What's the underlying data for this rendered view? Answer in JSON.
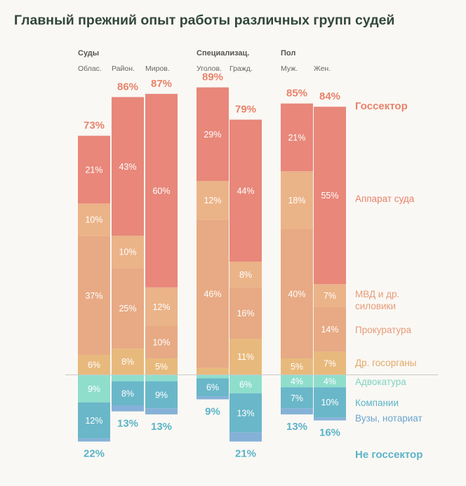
{
  "title": "Главный прежний опыт работы различных групп судей",
  "chart_data": {
    "type": "bar",
    "stacked": true,
    "diverging": true,
    "title": "Главный прежний опыт работы различных групп судей",
    "groups": [
      {
        "label": "Суды",
        "categories": [
          "Облас.",
          "Район.",
          "Миров."
        ]
      },
      {
        "label": "Специализац.",
        "categories": [
          "Уголов.",
          "Гражд."
        ]
      },
      {
        "label": "Пол",
        "categories": [
          "Муж.",
          "Жен."
        ]
      }
    ],
    "categories": [
      "Облас.",
      "Район.",
      "Миров.",
      "Уголов.",
      "Гражд.",
      "Муж.",
      "Жен."
    ],
    "public_sector": {
      "label": "Госсектор",
      "totals": [
        "73%",
        "86%",
        "87%",
        "89%",
        "79%",
        "85%",
        "84%"
      ],
      "series": [
        {
          "name": "Др. госорганы",
          "color": "#e8b97c",
          "values": [
            6,
            8,
            5,
            2,
            11,
            5,
            7
          ],
          "labels": [
            "6%",
            "8%",
            "5%",
            "",
            "11%",
            "5%",
            "7%"
          ]
        },
        {
          "name": "Прокуратура",
          "color": "#e7aa84",
          "values": [
            37,
            25,
            10,
            46,
            16,
            40,
            14
          ],
          "labels": [
            "37%",
            "25%",
            "10%",
            "46%",
            "16%",
            "40%",
            "14%"
          ]
        },
        {
          "name": "МВД и др. силовики",
          "color": "#ebb388",
          "values": [
            10,
            10,
            12,
            12,
            8,
            18,
            7
          ],
          "labels": [
            "10%",
            "10%",
            "12%",
            "12%",
            "8%",
            "18%",
            "7%"
          ]
        },
        {
          "name": "Аппарат суда",
          "color": "#e8877a",
          "values": [
            21,
            43,
            60,
            29,
            44,
            21,
            55
          ],
          "labels": [
            "21%",
            "43%",
            "60%",
            "29%",
            "44%",
            "21%",
            "55%"
          ]
        }
      ]
    },
    "private_sector": {
      "label": "Не госсектор",
      "totals": [
        "22%",
        "13%",
        "13%",
        "9%",
        "21%",
        "13%",
        "16%"
      ],
      "series": [
        {
          "name": "Адвокатура",
          "color": "#8fdecc",
          "values": [
            9,
            2,
            2,
            1,
            6,
            4,
            4
          ],
          "labels": [
            "9%",
            "",
            "",
            "",
            "6%",
            "4%",
            "4%"
          ]
        },
        {
          "name": "Компании",
          "color": "#6ab7c9",
          "values": [
            12,
            8,
            9,
            6,
            13,
            7,
            10
          ],
          "labels": [
            "12%",
            "8%",
            "9%",
            "6%",
            "13%",
            "7%",
            "10%"
          ]
        },
        {
          "name": "Вузы, нотариат",
          "color": "#85b1d8",
          "values": [
            1,
            2,
            2,
            1,
            3,
            2,
            1
          ],
          "labels": [
            "",
            "",
            "",
            "",
            "",
            "",
            ""
          ]
        }
      ]
    },
    "legend": [
      {
        "name": "Госсектор",
        "color": "#e8826a",
        "emphasis": true
      },
      {
        "name": "Аппарат суда",
        "color": "#e8826a"
      },
      {
        "name": "МВД и др.",
        "name2": "силовики",
        "color": "#e69c7a"
      },
      {
        "name": "Прокуратура",
        "color": "#e69c7a"
      },
      {
        "name": "Др. госорганы",
        "color": "#e2a86a"
      },
      {
        "name": "Адвокатура",
        "color": "#7fd3c2"
      },
      {
        "name": "Компании",
        "color": "#5bb3c8"
      },
      {
        "name": "Вузы, нотариат",
        "color": "#6aa3cf"
      },
      {
        "name": "Не госсектор",
        "color": "#5bb3c8",
        "emphasis": true
      }
    ],
    "legend_position": "right"
  }
}
